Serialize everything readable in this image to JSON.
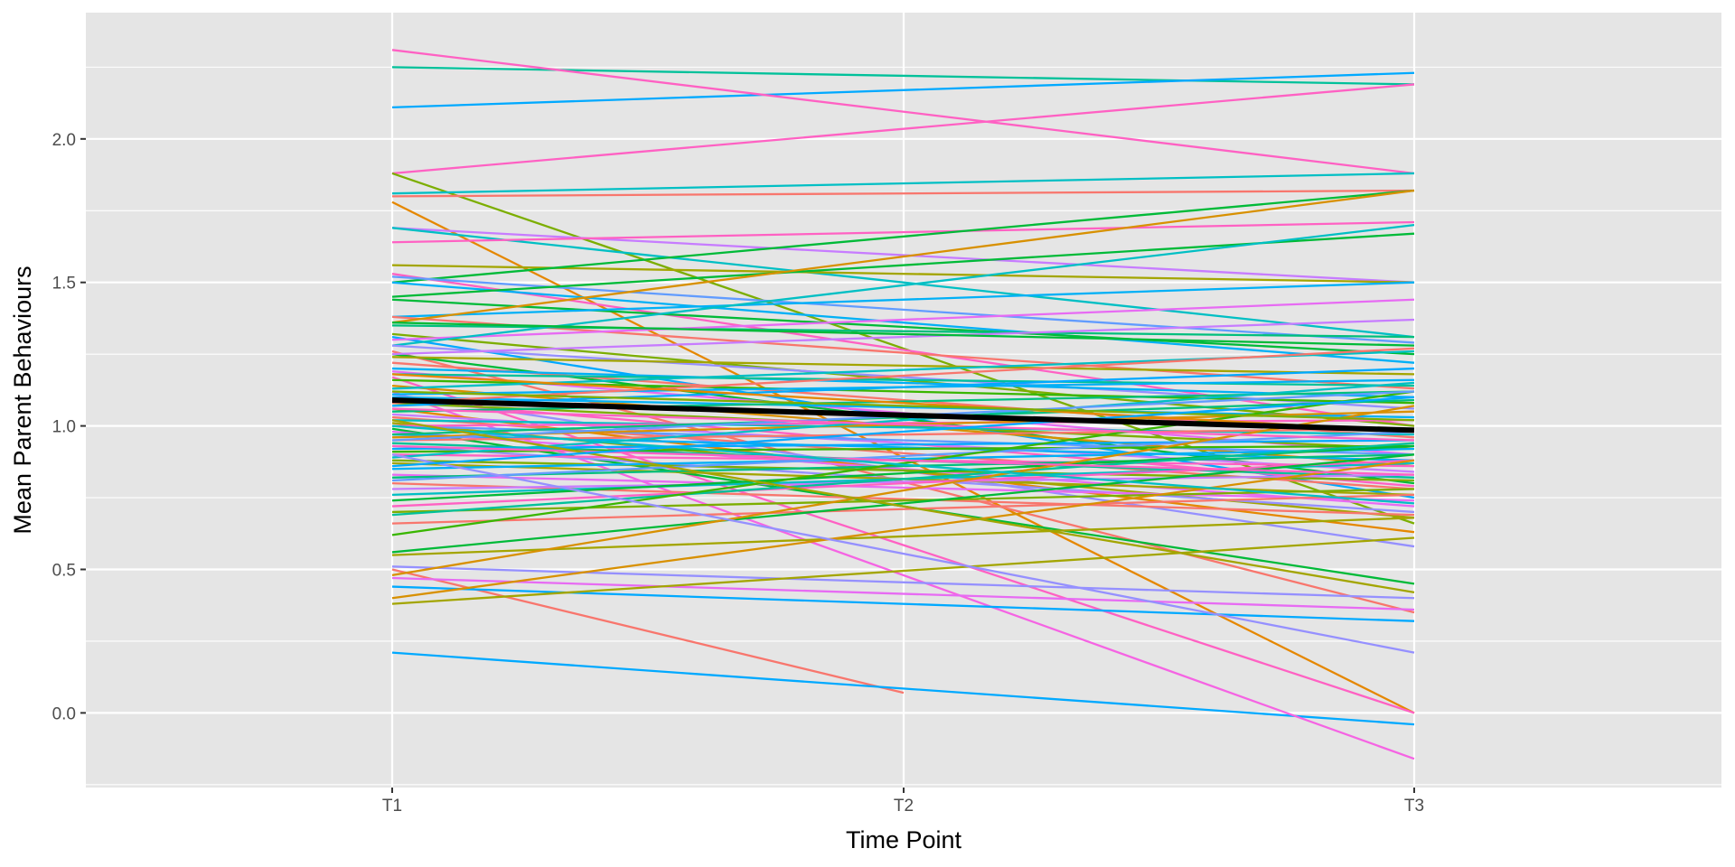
{
  "chart_data": {
    "type": "line",
    "title": "",
    "xlabel": "Time Point",
    "ylabel": "Mean Parent Behaviours",
    "categories": [
      "T1",
      "T2",
      "T3"
    ],
    "ylim": [
      -0.26,
      2.44
    ],
    "y_ticks": [
      0.0,
      0.5,
      1.0,
      1.5,
      2.0
    ],
    "y_tick_labels": [
      "0.0",
      "0.5",
      "1.0",
      "1.5",
      "2.0"
    ],
    "grid": true,
    "legend": "none",
    "mean_line": {
      "name": "",
      "color": "#000000",
      "values": [
        1.09,
        null,
        0.985
      ]
    },
    "series": [
      {
        "color": "#F8766D",
        "values": [
          0.5,
          0.07,
          null
        ]
      },
      {
        "color": "#00A9FF",
        "values": [
          0.21,
          null,
          -0.04
        ]
      },
      {
        "color": "#00C19A",
        "values": [
          2.25,
          null,
          2.19
        ]
      },
      {
        "color": "#00A9FF",
        "values": [
          2.11,
          null,
          2.23
        ]
      },
      {
        "color": "#FF61C3",
        "values": [
          2.31,
          null,
          1.88
        ]
      },
      {
        "color": "#FF61C3",
        "values": [
          1.88,
          null,
          2.19
        ]
      },
      {
        "color": "#7CAE00",
        "values": [
          1.88,
          null,
          0.66
        ]
      },
      {
        "color": "#00BFC4",
        "values": [
          1.81,
          null,
          1.88
        ]
      },
      {
        "color": "#F8766D",
        "values": [
          1.8,
          null,
          1.82
        ]
      },
      {
        "color": "#E58700",
        "values": [
          1.78,
          null,
          0.0
        ]
      },
      {
        "color": "#C77CFF",
        "values": [
          1.69,
          null,
          1.5
        ]
      },
      {
        "color": "#00BFC4",
        "values": [
          1.69,
          null,
          1.31
        ]
      },
      {
        "color": "#FF61C3",
        "values": [
          1.64,
          null,
          1.71
        ]
      },
      {
        "color": "#A3A500",
        "values": [
          1.56,
          null,
          1.5
        ]
      },
      {
        "color": "#00BA38",
        "values": [
          1.5,
          null,
          1.82
        ]
      },
      {
        "color": "#FF61C3",
        "values": [
          1.53,
          null,
          1.0
        ]
      },
      {
        "color": "#619CFF",
        "values": [
          1.52,
          null,
          1.29
        ]
      },
      {
        "color": "#00B0F6",
        "values": [
          1.5,
          null,
          1.22
        ]
      },
      {
        "color": "#00BA38",
        "values": [
          1.45,
          null,
          1.67
        ]
      },
      {
        "color": "#00BA38",
        "values": [
          1.44,
          null,
          1.25
        ]
      },
      {
        "color": "#00B0F6",
        "values": [
          1.38,
          null,
          1.5
        ]
      },
      {
        "color": "#F8766D",
        "values": [
          1.38,
          null,
          1.13
        ]
      },
      {
        "color": "#D89000",
        "values": [
          1.36,
          null,
          1.82
        ]
      },
      {
        "color": "#00BF7D",
        "values": [
          1.35,
          null,
          1.31
        ]
      },
      {
        "color": "#7CAE00",
        "values": [
          1.32,
          null,
          1.0
        ]
      },
      {
        "color": "#00A9FF",
        "values": [
          1.31,
          null,
          0.75
        ]
      },
      {
        "color": "#E76BF3",
        "values": [
          1.3,
          null,
          1.44
        ]
      },
      {
        "color": "#00BFC4",
        "values": [
          1.28,
          null,
          1.7
        ]
      },
      {
        "color": "#9590FF",
        "values": [
          1.28,
          null,
          1.06
        ]
      },
      {
        "color": "#F8766D",
        "values": [
          1.26,
          null,
          0.35
        ]
      },
      {
        "color": "#00BA38",
        "values": [
          1.25,
          null,
          0.8
        ]
      },
      {
        "color": "#A3A500",
        "values": [
          1.24,
          null,
          1.18
        ]
      },
      {
        "color": "#F8766D",
        "values": [
          1.22,
          null,
          0.96
        ]
      },
      {
        "color": "#00B0F6",
        "values": [
          1.2,
          null,
          1.1
        ]
      },
      {
        "color": "#E76BF3",
        "values": [
          1.19,
          null,
          0.9
        ]
      },
      {
        "color": "#00C19A",
        "values": [
          1.18,
          null,
          1.14
        ]
      },
      {
        "color": "#FF61C3",
        "values": [
          1.17,
          null,
          0.0
        ]
      },
      {
        "color": "#39B600",
        "values": [
          1.16,
          null,
          1.08
        ]
      },
      {
        "color": "#D89000",
        "values": [
          1.14,
          null,
          0.86
        ]
      },
      {
        "color": "#00BFC4",
        "values": [
          1.13,
          null,
          1.26
        ]
      },
      {
        "color": "#F564E3",
        "values": [
          1.12,
          null,
          -0.16
        ]
      },
      {
        "color": "#9590FF",
        "values": [
          1.11,
          null,
          0.58
        ]
      },
      {
        "color": "#00B0F6",
        "values": [
          1.1,
          null,
          1.03
        ]
      },
      {
        "color": "#FF61C3",
        "values": [
          1.09,
          null,
          0.79
        ]
      },
      {
        "color": "#7CAE00",
        "values": [
          1.08,
          null,
          0.92
        ]
      },
      {
        "color": "#00A9FF",
        "values": [
          1.07,
          null,
          1.2
        ]
      },
      {
        "color": "#E58700",
        "values": [
          1.06,
          null,
          0.63
        ]
      },
      {
        "color": "#00BF7D",
        "values": [
          1.05,
          null,
          1.12
        ]
      },
      {
        "color": "#C77CFF",
        "values": [
          1.04,
          null,
          0.84
        ]
      },
      {
        "color": "#F8766D",
        "values": [
          1.03,
          null,
          0.78
        ]
      },
      {
        "color": "#00BFC4",
        "values": [
          1.02,
          null,
          0.97
        ]
      },
      {
        "color": "#A3A500",
        "values": [
          1.01,
          null,
          0.68
        ]
      },
      {
        "color": "#619CFF",
        "values": [
          1.0,
          null,
          0.9
        ]
      },
      {
        "color": "#FF61C3",
        "values": [
          1.0,
          null,
          1.02
        ]
      },
      {
        "color": "#00BA38",
        "values": [
          0.99,
          null,
          0.45
        ]
      },
      {
        "color": "#E76BF3",
        "values": [
          0.98,
          null,
          0.72
        ]
      },
      {
        "color": "#00B0F6",
        "values": [
          0.97,
          null,
          0.88
        ]
      },
      {
        "color": "#D89000",
        "values": [
          0.96,
          null,
          1.05
        ]
      },
      {
        "color": "#F8766D",
        "values": [
          0.95,
          null,
          0.99
        ]
      },
      {
        "color": "#00C19A",
        "values": [
          0.94,
          null,
          0.82
        ]
      },
      {
        "color": "#9590FF",
        "values": [
          0.93,
          null,
          0.7
        ]
      },
      {
        "color": "#00A9FF",
        "values": [
          0.92,
          null,
          0.95
        ]
      },
      {
        "color": "#39B600",
        "values": [
          0.91,
          null,
          0.93
        ]
      },
      {
        "color": "#FF61C3",
        "values": [
          0.9,
          null,
          0.86
        ]
      },
      {
        "color": "#00BFC4",
        "values": [
          0.89,
          null,
          1.15
        ]
      },
      {
        "color": "#7CAE00",
        "values": [
          0.88,
          null,
          0.81
        ]
      },
      {
        "color": "#A3A500",
        "values": [
          0.87,
          null,
          0.76
        ]
      },
      {
        "color": "#00B0F6",
        "values": [
          0.85,
          null,
          0.92
        ]
      },
      {
        "color": "#E76BF3",
        "values": [
          0.83,
          null,
          0.74
        ]
      },
      {
        "color": "#00BF7D",
        "values": [
          0.82,
          null,
          0.9
        ]
      },
      {
        "color": "#619CFF",
        "values": [
          0.81,
          null,
          0.98
        ]
      },
      {
        "color": "#F8766D",
        "values": [
          0.8,
          null,
          0.69
        ]
      },
      {
        "color": "#C77CFF",
        "values": [
          0.78,
          null,
          0.83
        ]
      },
      {
        "color": "#00BFC4",
        "values": [
          0.76,
          null,
          0.87
        ]
      },
      {
        "color": "#00BA38",
        "values": [
          0.74,
          null,
          0.93
        ]
      },
      {
        "color": "#FF61C3",
        "values": [
          0.72,
          null,
          0.88
        ]
      },
      {
        "color": "#7CAE00",
        "values": [
          0.7,
          null,
          0.78
        ]
      },
      {
        "color": "#00C19A",
        "values": [
          0.69,
          null,
          0.94
        ]
      },
      {
        "color": "#F8766D",
        "values": [
          0.66,
          null,
          0.76
        ]
      },
      {
        "color": "#39B600",
        "values": [
          0.62,
          null,
          1.12
        ]
      },
      {
        "color": "#00BA38",
        "values": [
          0.56,
          null,
          0.9
        ]
      },
      {
        "color": "#A3A500",
        "values": [
          0.55,
          null,
          0.68
        ]
      },
      {
        "color": "#9590FF",
        "values": [
          0.51,
          null,
          0.4
        ]
      },
      {
        "color": "#D89000",
        "values": [
          0.48,
          null,
          1.07
        ]
      },
      {
        "color": "#E76BF3",
        "values": [
          0.47,
          null,
          0.36
        ]
      },
      {
        "color": "#00A9FF",
        "values": [
          0.44,
          null,
          0.32
        ]
      },
      {
        "color": "#D89000",
        "values": [
          0.4,
          null,
          0.88
        ]
      },
      {
        "color": "#A3A500",
        "values": [
          0.38,
          null,
          0.61
        ]
      },
      {
        "color": "#00B0F6",
        "values": [
          1.11,
          null,
          1.16
        ]
      },
      {
        "color": "#F8766D",
        "values": [
          1.08,
          null,
          1.27
        ]
      },
      {
        "color": "#00BF7D",
        "values": [
          0.97,
          null,
          1.09
        ]
      },
      {
        "color": "#FF61C3",
        "values": [
          0.93,
          null,
          0.83
        ]
      },
      {
        "color": "#E58700",
        "values": [
          1.18,
          null,
          0.98
        ]
      },
      {
        "color": "#619CFF",
        "values": [
          0.95,
          null,
          1.12
        ]
      },
      {
        "color": "#7CAE00",
        "values": [
          1.12,
          null,
          1.02
        ]
      },
      {
        "color": "#00BFC4",
        "values": [
          1.0,
          null,
          0.73
        ]
      },
      {
        "color": "#C77CFF",
        "values": [
          1.25,
          null,
          1.37
        ]
      },
      {
        "color": "#A3A500",
        "values": [
          1.02,
          null,
          0.42
        ]
      },
      {
        "color": "#9590FF",
        "values": [
          0.9,
          null,
          0.21
        ]
      },
      {
        "color": "#00BA38",
        "values": [
          1.36,
          null,
          1.28
        ]
      },
      {
        "color": "#FF61C3",
        "values": [
          1.06,
          null,
          0.95
        ]
      },
      {
        "color": "#00A9FF",
        "values": [
          0.86,
          null,
          1.1
        ]
      }
    ]
  }
}
